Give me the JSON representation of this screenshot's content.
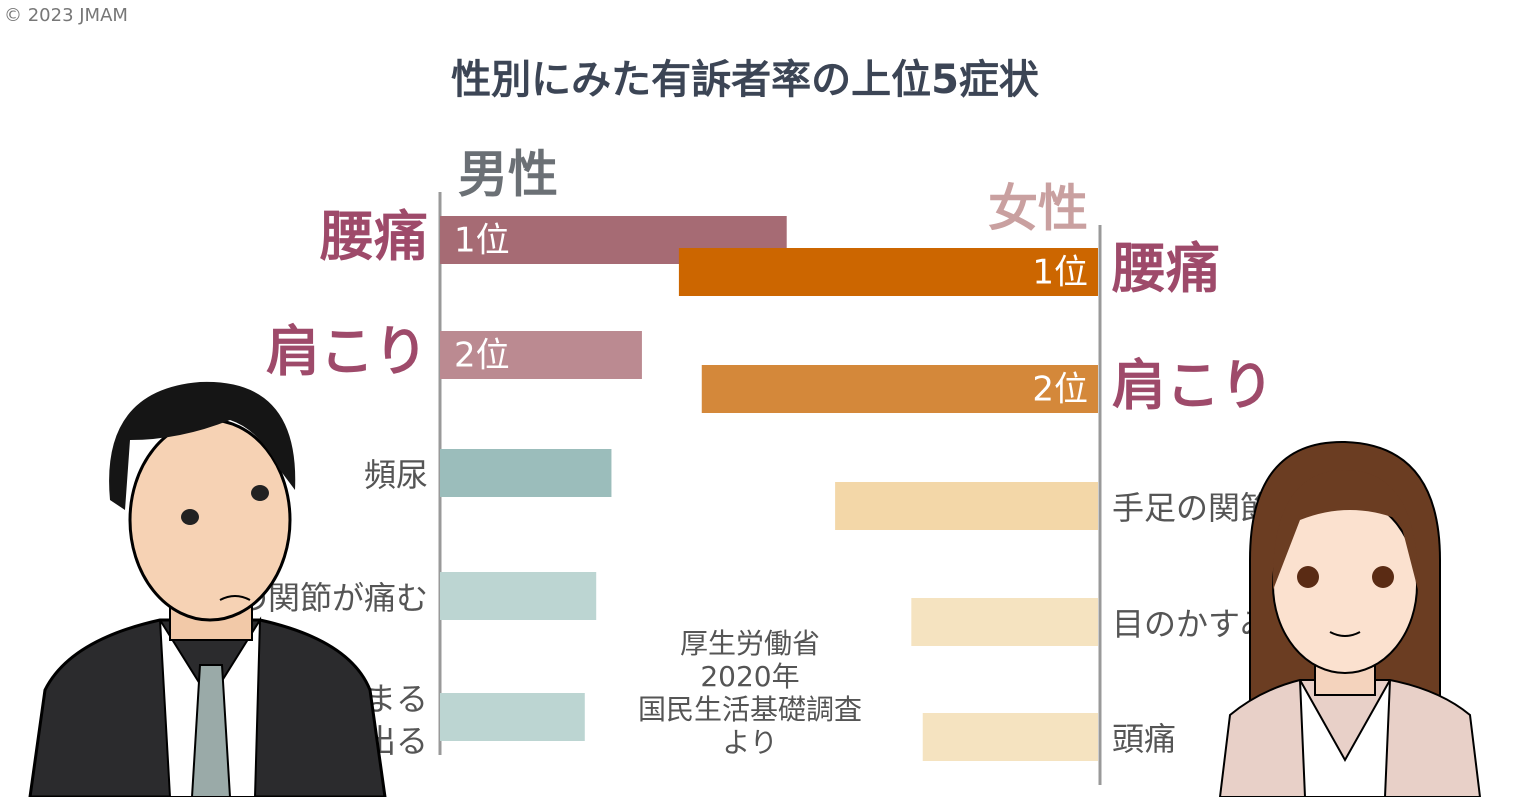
{
  "copyright": "© 2023 JMAM",
  "chart_data": [
    {
      "type": "hbar",
      "title": "性別にみた有訴者率の上位5症状",
      "name": "男性",
      "categories": [
        "腰痛",
        "肩こり",
        "頻尿",
        "手足の関節が痛む",
        "鼻がつまる\n鼻汁が出る"
      ],
      "values": [
        91,
        53,
        45,
        41,
        38
      ],
      "ranks": [
        "1位",
        "2位",
        null,
        null,
        null
      ],
      "colors": [
        "#a66b74",
        "#bb8a91",
        "#9bbdbb",
        "#bcd5d2",
        "#bcd5d2"
      ],
      "xlim": [
        0,
        120
      ],
      "direction": "right"
    },
    {
      "type": "hbar",
      "name": "女性",
      "categories": [
        "腰痛",
        "肩こり",
        "手足の関節が痛む",
        "目のかすみ",
        "頭痛"
      ],
      "values": [
        110,
        104,
        69,
        49,
        46
      ],
      "ranks": [
        "1位",
        "2位",
        null,
        null,
        null
      ],
      "colors": [
        "#cc6600",
        "#d4883a",
        "#f3d7a8",
        "#f5e3c0",
        "#f5e3c0"
      ],
      "xlim": [
        0,
        120
      ],
      "direction": "left",
      "source": [
        "厚生労働省",
        "2020年",
        "国民生活基礎調査",
        "より"
      ]
    }
  ]
}
